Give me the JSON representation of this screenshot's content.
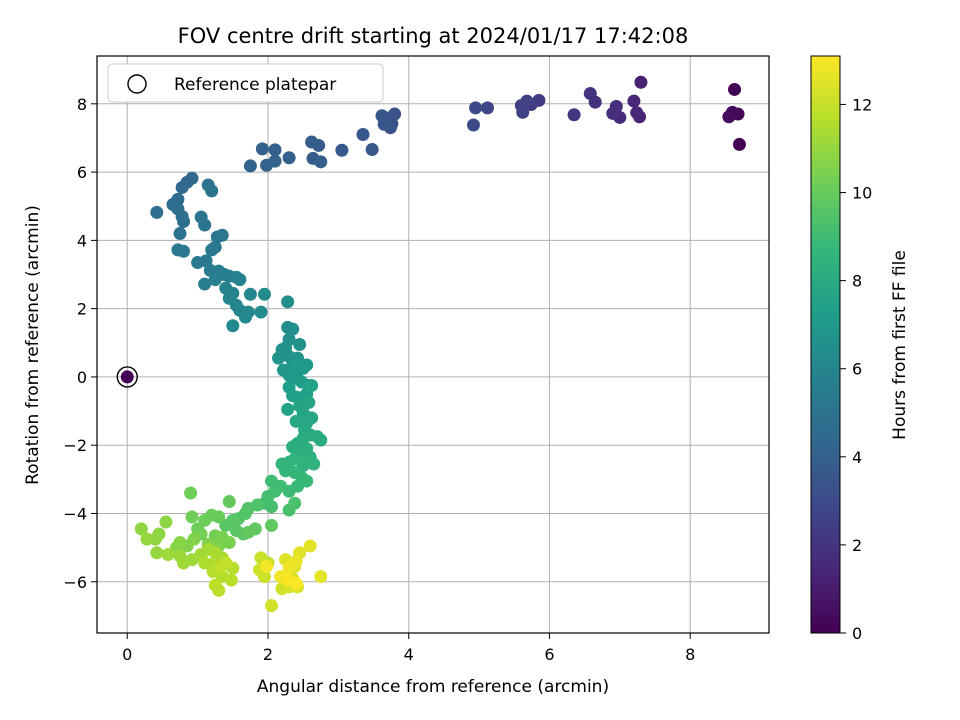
{
  "chart_data": {
    "type": "scatter",
    "title": "FOV centre drift starting at 2024/01/17 17:42:08",
    "xlabel": "Angular distance from reference (arcmin)",
    "ylabel": "Rotation from reference (arcmin)",
    "xlim": [
      -0.43,
      9.12
    ],
    "ylim": [
      -7.5,
      9.4
    ],
    "xticks": [
      0,
      2,
      4,
      6,
      8
    ],
    "yticks": [
      -6,
      -4,
      -2,
      0,
      2,
      4,
      6,
      8
    ],
    "grid": true,
    "legend": {
      "position": "top-left",
      "entries": [
        "Reference platepar"
      ]
    },
    "reference_point": {
      "x": 0,
      "y": 0,
      "hours": 0
    },
    "colorbar": {
      "label": "Hours from first FF file",
      "range": [
        0,
        13.1
      ],
      "ticks": [
        0,
        2,
        4,
        6,
        8,
        10,
        12
      ],
      "colormap": "viridis",
      "colors": [
        "#440154",
        "#482878",
        "#3e4989",
        "#31688e",
        "#26828e",
        "#1f9e89",
        "#35b779",
        "#6ece58",
        "#b5de2b",
        "#fde725"
      ]
    },
    "series": [
      {
        "values": [
          [
            8.7,
            6.81,
            0.0
          ],
          [
            8.63,
            8.42,
            0.1
          ],
          [
            8.68,
            7.7,
            0.2
          ],
          [
            8.6,
            7.75,
            0.3
          ],
          [
            8.55,
            7.62,
            0.4
          ],
          [
            7.3,
            8.63,
            1.2
          ],
          [
            7.28,
            7.62,
            1.3
          ],
          [
            7.2,
            8.08,
            1.4
          ],
          [
            7.24,
            7.74,
            1.5
          ],
          [
            7.0,
            7.6,
            1.6
          ],
          [
            6.95,
            7.92,
            1.7
          ],
          [
            6.9,
            7.72,
            1.8
          ],
          [
            6.65,
            8.05,
            1.9
          ],
          [
            6.58,
            8.3,
            2.0
          ],
          [
            6.35,
            7.68,
            2.1
          ],
          [
            5.85,
            8.1,
            2.3
          ],
          [
            5.74,
            7.98,
            2.4
          ],
          [
            5.68,
            8.08,
            2.5
          ],
          [
            5.6,
            7.95,
            2.6
          ],
          [
            5.62,
            7.75,
            2.6
          ],
          [
            5.12,
            7.88,
            2.8
          ],
          [
            4.95,
            7.88,
            2.9
          ],
          [
            4.92,
            7.38,
            3.0
          ],
          [
            3.8,
            7.7,
            3.3
          ],
          [
            3.76,
            7.42,
            3.3
          ],
          [
            3.7,
            7.58,
            3.4
          ],
          [
            3.74,
            7.3,
            3.4
          ],
          [
            3.62,
            7.65,
            3.5
          ],
          [
            3.65,
            7.4,
            3.5
          ],
          [
            3.35,
            7.1,
            3.6
          ],
          [
            3.48,
            6.66,
            3.6
          ],
          [
            3.05,
            6.64,
            3.7
          ],
          [
            2.72,
            6.78,
            3.8
          ],
          [
            2.62,
            6.88,
            3.8
          ],
          [
            2.75,
            6.3,
            3.9
          ],
          [
            2.64,
            6.4,
            3.9
          ],
          [
            2.3,
            6.42,
            4.0
          ],
          [
            2.1,
            6.65,
            4.0
          ],
          [
            1.92,
            6.68,
            4.1
          ],
          [
            2.1,
            6.32,
            4.1
          ],
          [
            1.98,
            6.2,
            4.2
          ],
          [
            1.75,
            6.18,
            4.2
          ],
          [
            0.92,
            5.82,
            4.4
          ],
          [
            0.85,
            5.7,
            4.4
          ],
          [
            0.78,
            5.55,
            4.5
          ],
          [
            0.72,
            5.2,
            4.6
          ],
          [
            0.65,
            5.05,
            4.6
          ],
          [
            0.42,
            4.82,
            4.7
          ],
          [
            0.72,
            4.92,
            4.7
          ],
          [
            0.78,
            4.7,
            4.8
          ],
          [
            0.8,
            4.55,
            4.8
          ],
          [
            0.75,
            4.2,
            4.9
          ],
          [
            1.15,
            5.62,
            4.9
          ],
          [
            1.2,
            5.45,
            5.0
          ],
          [
            1.05,
            4.68,
            5.0
          ],
          [
            1.1,
            4.45,
            5.1
          ],
          [
            1.28,
            4.1,
            5.1
          ],
          [
            1.35,
            4.15,
            5.2
          ],
          [
            1.25,
            3.8,
            5.2
          ],
          [
            1.2,
            3.72,
            5.3
          ],
          [
            0.72,
            3.72,
            5.3
          ],
          [
            0.8,
            3.68,
            5.3
          ],
          [
            1.0,
            3.35,
            5.4
          ],
          [
            1.12,
            3.4,
            5.4
          ],
          [
            1.18,
            3.12,
            5.5
          ],
          [
            1.3,
            3.1,
            5.5
          ],
          [
            1.38,
            3.0,
            5.6
          ],
          [
            1.1,
            2.72,
            5.6
          ],
          [
            1.25,
            2.85,
            5.7
          ],
          [
            1.45,
            2.95,
            5.7
          ],
          [
            1.55,
            2.92,
            5.8
          ],
          [
            1.6,
            2.85,
            5.8
          ],
          [
            1.4,
            2.6,
            5.9
          ],
          [
            1.5,
            2.45,
            5.9
          ],
          [
            1.45,
            2.3,
            6.0
          ],
          [
            1.55,
            2.1,
            6.0
          ],
          [
            1.75,
            2.42,
            6.1
          ],
          [
            1.6,
            1.95,
            6.1
          ],
          [
            1.72,
            1.9,
            6.2
          ],
          [
            1.5,
            1.5,
            6.2
          ],
          [
            1.68,
            1.75,
            6.2
          ],
          [
            1.9,
            1.9,
            6.3
          ],
          [
            1.95,
            2.42,
            6.3
          ],
          [
            2.28,
            2.2,
            6.4
          ],
          [
            2.28,
            1.45,
            6.4
          ],
          [
            2.35,
            1.4,
            6.5
          ],
          [
            2.3,
            1.1,
            6.5
          ],
          [
            2.25,
            0.85,
            6.6
          ],
          [
            2.2,
            0.8,
            6.6
          ],
          [
            2.45,
            0.95,
            6.6
          ],
          [
            2.15,
            0.55,
            6.7
          ],
          [
            2.3,
            0.6,
            6.7
          ],
          [
            2.42,
            0.55,
            6.8
          ],
          [
            2.35,
            0.35,
            6.8
          ],
          [
            2.22,
            0.2,
            6.9
          ],
          [
            2.3,
            0.05,
            6.9
          ],
          [
            2.42,
            -0.05,
            7.0
          ],
          [
            2.5,
            0.25,
            7.0
          ],
          [
            2.55,
            0.35,
            7.1
          ],
          [
            2.4,
            0.3,
            7.1
          ],
          [
            2.48,
            -0.15,
            7.2
          ],
          [
            2.58,
            -0.25,
            7.2
          ],
          [
            2.3,
            -0.3,
            7.3
          ],
          [
            2.35,
            -0.55,
            7.3
          ],
          [
            2.42,
            -0.6,
            7.4
          ],
          [
            2.55,
            -0.5,
            7.4
          ],
          [
            2.62,
            -0.25,
            7.5
          ],
          [
            2.28,
            -0.95,
            7.5
          ],
          [
            2.45,
            -0.85,
            7.6
          ],
          [
            2.5,
            -1.05,
            7.6
          ],
          [
            2.58,
            -0.75,
            7.7
          ],
          [
            2.62,
            -1.2,
            7.7
          ],
          [
            2.55,
            -1.35,
            7.8
          ],
          [
            2.4,
            -1.3,
            7.8
          ],
          [
            2.52,
            -1.55,
            7.9
          ],
          [
            2.6,
            -1.7,
            7.9
          ],
          [
            2.7,
            -1.75,
            8.0
          ],
          [
            2.75,
            -1.85,
            8.0
          ],
          [
            2.5,
            -1.8,
            8.1
          ],
          [
            2.42,
            -1.95,
            8.1
          ],
          [
            2.35,
            -2.05,
            8.2
          ],
          [
            2.45,
            -2.25,
            8.2
          ],
          [
            2.55,
            -2.1,
            8.3
          ],
          [
            2.6,
            -2.35,
            8.3
          ],
          [
            2.65,
            -2.55,
            8.4
          ],
          [
            2.5,
            -2.6,
            8.4
          ],
          [
            2.38,
            -2.4,
            8.5
          ],
          [
            2.3,
            -2.5,
            8.5
          ],
          [
            2.2,
            -2.55,
            8.6
          ],
          [
            2.25,
            -2.75,
            8.6
          ],
          [
            2.38,
            -2.8,
            8.7
          ],
          [
            2.48,
            -2.95,
            8.7
          ],
          [
            2.55,
            -3.05,
            8.8
          ],
          [
            2.42,
            -3.2,
            8.8
          ],
          [
            2.3,
            -3.35,
            8.9
          ],
          [
            2.18,
            -3.2,
            9.0
          ],
          [
            2.05,
            -3.05,
            9.0
          ],
          [
            2.1,
            -3.35,
            9.1
          ],
          [
            2.0,
            -3.5,
            9.1
          ],
          [
            1.95,
            -3.7,
            9.2
          ],
          [
            2.05,
            -3.8,
            9.2
          ],
          [
            2.3,
            -3.9,
            9.3
          ],
          [
            2.38,
            -3.7,
            9.3
          ],
          [
            1.85,
            -3.75,
            9.4
          ],
          [
            1.72,
            -3.85,
            9.4
          ],
          [
            1.68,
            -4.0,
            9.5
          ],
          [
            1.58,
            -4.15,
            9.5
          ],
          [
            1.5,
            -4.2,
            9.6
          ],
          [
            1.4,
            -4.35,
            9.6
          ],
          [
            1.55,
            -4.5,
            9.7
          ],
          [
            1.65,
            -4.6,
            9.7
          ],
          [
            1.82,
            -4.45,
            9.8
          ],
          [
            2.05,
            -4.35,
            9.8
          ],
          [
            1.72,
            -4.55,
            9.9
          ],
          [
            1.45,
            -3.65,
            9.9
          ],
          [
            1.3,
            -4.1,
            10.0
          ],
          [
            1.2,
            -4.05,
            10.0
          ],
          [
            1.1,
            -4.2,
            10.1
          ],
          [
            1.0,
            -4.45,
            10.1
          ],
          [
            0.92,
            -4.1,
            10.2
          ],
          [
            0.9,
            -3.4,
            10.2
          ],
          [
            1.05,
            -4.6,
            10.3
          ],
          [
            1.25,
            -4.65,
            10.3
          ],
          [
            1.35,
            -4.7,
            10.4
          ],
          [
            1.45,
            -4.85,
            10.4
          ],
          [
            1.3,
            -4.95,
            10.5
          ],
          [
            1.15,
            -4.9,
            10.5
          ],
          [
            0.95,
            -4.75,
            10.6
          ],
          [
            0.85,
            -4.95,
            10.6
          ],
          [
            0.75,
            -4.85,
            10.7
          ],
          [
            0.7,
            -5.0,
            10.7
          ],
          [
            0.55,
            -4.25,
            10.8
          ],
          [
            0.45,
            -4.6,
            10.8
          ],
          [
            0.4,
            -4.75,
            10.9
          ],
          [
            0.2,
            -4.45,
            10.9
          ],
          [
            0.28,
            -4.75,
            11.0
          ],
          [
            0.42,
            -5.15,
            11.0
          ],
          [
            0.58,
            -5.2,
            11.1
          ],
          [
            0.75,
            -5.25,
            11.1
          ],
          [
            0.8,
            -5.45,
            11.2
          ],
          [
            0.92,
            -5.35,
            11.2
          ],
          [
            1.05,
            -5.2,
            11.3
          ],
          [
            1.15,
            -5.05,
            11.3
          ],
          [
            1.25,
            -5.15,
            11.4
          ],
          [
            1.35,
            -5.3,
            11.4
          ],
          [
            1.2,
            -5.5,
            11.5
          ],
          [
            1.1,
            -5.45,
            11.5
          ],
          [
            1.22,
            -5.7,
            11.6
          ],
          [
            1.35,
            -5.85,
            11.6
          ],
          [
            1.5,
            -5.6,
            11.7
          ],
          [
            1.48,
            -5.95,
            11.7
          ],
          [
            1.3,
            -6.25,
            11.8
          ],
          [
            1.25,
            -6.1,
            11.8
          ],
          [
            1.32,
            -5.6,
            11.9
          ],
          [
            1.4,
            -5.45,
            11.9
          ],
          [
            1.9,
            -5.3,
            12.0
          ],
          [
            2.0,
            -5.45,
            12.0
          ],
          [
            1.88,
            -5.65,
            12.1
          ],
          [
            1.95,
            -5.85,
            12.1
          ],
          [
            2.05,
            -6.7,
            12.2
          ],
          [
            2.2,
            -6.2,
            12.2
          ],
          [
            2.3,
            -6.15,
            12.3
          ],
          [
            2.35,
            -5.9,
            12.3
          ],
          [
            2.38,
            -5.55,
            12.4
          ],
          [
            2.42,
            -6.15,
            12.4
          ],
          [
            2.45,
            -5.15,
            12.5
          ],
          [
            2.25,
            -5.35,
            12.5
          ],
          [
            2.6,
            -4.95,
            12.6
          ],
          [
            2.75,
            -5.85,
            12.6
          ],
          [
            2.4,
            -5.4,
            12.7
          ],
          [
            2.3,
            -5.6,
            12.8
          ],
          [
            2.18,
            -5.85,
            12.8
          ],
          [
            1.98,
            -5.55,
            12.9
          ],
          [
            2.28,
            -5.95,
            13.0
          ],
          [
            2.4,
            -6.05,
            13.1
          ]
        ]
      }
    ]
  }
}
